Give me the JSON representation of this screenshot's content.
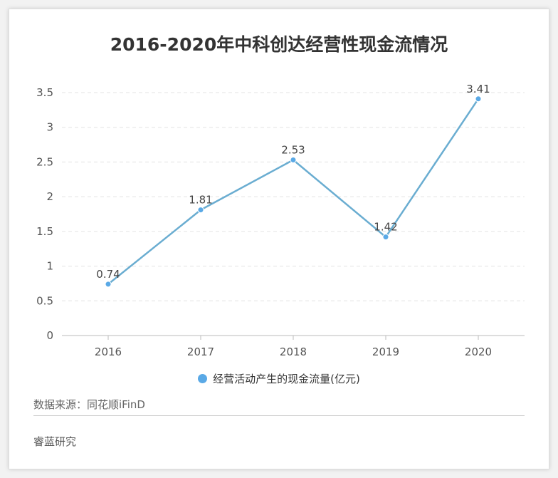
{
  "chart_data": {
    "type": "line",
    "title": "2016-2020年中科创达经营性现金流情况",
    "categories": [
      "2016",
      "2017",
      "2018",
      "2019",
      "2020"
    ],
    "series": [
      {
        "name": "经营活动产生的现金流量(亿元)",
        "values": [
          0.74,
          1.81,
          2.53,
          1.42,
          3.41
        ]
      }
    ],
    "yticks": [
      "0",
      "0.5",
      "1",
      "1.5",
      "2",
      "2.5",
      "3",
      "3.5"
    ],
    "ylim": [
      0,
      3.5
    ],
    "grid": true,
    "legend": "bottom",
    "colors": {
      "line": "#6aadd1",
      "marker": "#5aa9e6"
    }
  },
  "source": "数据来源：同花顺iFinD",
  "footer": "睿蓝研究"
}
